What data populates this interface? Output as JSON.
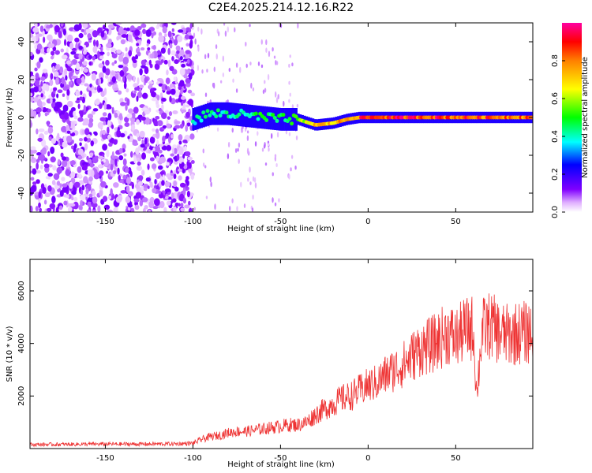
{
  "title": "C2E4.2025.214.12.16.R22",
  "chart_data": [
    {
      "type": "heatmap",
      "xlabel": "Height of straight line (km)",
      "ylabel": "Frequency (Hz)",
      "xlim": [
        -193,
        94
      ],
      "ylim": [
        -50,
        50
      ],
      "xticks": [
        -150,
        -100,
        -50,
        0,
        50
      ],
      "yticks": [
        -40,
        -20,
        0,
        20,
        40
      ],
      "colorbar": {
        "label": "Normalized spectral amplitude",
        "range": [
          0,
          1
        ],
        "ticks": [
          "0.0",
          "0.2",
          "0.4",
          "0.6",
          "0.8"
        ]
      },
      "ridge": {
        "x": [
          -100,
          -90,
          -80,
          -70,
          -60,
          -50,
          -40,
          -30,
          -20,
          -12,
          -5,
          0,
          10,
          20,
          30,
          40,
          50,
          60,
          70,
          80,
          94
        ],
        "frequency": [
          -1,
          2,
          2,
          1,
          0,
          -1,
          -1,
          -4,
          -3,
          -1,
          0,
          0,
          0,
          0,
          0,
          0,
          0,
          0,
          0,
          0,
          0
        ],
        "amplitude": [
          0.4,
          0.45,
          0.45,
          0.45,
          0.5,
          0.5,
          0.55,
          0.8,
          0.75,
          0.85,
          0.9,
          0.95,
          0.95,
          0.95,
          0.95,
          0.95,
          0.9,
          0.9,
          0.9,
          0.9,
          0.9
        ]
      },
      "noise_region_x": [
        -193,
        -100
      ],
      "noise_amplitude": [
        0.0,
        0.1
      ]
    },
    {
      "type": "line",
      "xlabel": "Height of straight line (km)",
      "ylabel": "SNR (10 * v/v)",
      "xlim": [
        -193,
        94
      ],
      "ylim": [
        0,
        7200
      ],
      "xticks": [
        -150,
        -100,
        -50,
        0,
        50
      ],
      "yticks": [
        2000,
        4000,
        6000
      ],
      "series": [
        {
          "color": "#ee3333",
          "x": [
            -193,
            -170,
            -150,
            -130,
            -110,
            -100,
            -95,
            -90,
            -85,
            -80,
            -75,
            -70,
            -65,
            -60,
            -55,
            -50,
            -45,
            -40,
            -35,
            -30,
            -25,
            -20,
            -15,
            -10,
            -5,
            0,
            5,
            10,
            15,
            20,
            25,
            30,
            35,
            40,
            45,
            50,
            55,
            60,
            62,
            65,
            70,
            75,
            80,
            85,
            90,
            94
          ],
          "values": [
            150,
            160,
            170,
            170,
            180,
            200,
            350,
            450,
            500,
            600,
            650,
            650,
            700,
            750,
            800,
            850,
            900,
            900,
            1000,
            1300,
            1500,
            1700,
            1900,
            2000,
            2200,
            2400,
            2500,
            2800,
            3000,
            3200,
            3500,
            3800,
            3900,
            4100,
            4400,
            4200,
            4500,
            4600,
            2000,
            4500,
            4700,
            4400,
            4300,
            4400,
            4400,
            4500
          ]
        }
      ]
    }
  ]
}
